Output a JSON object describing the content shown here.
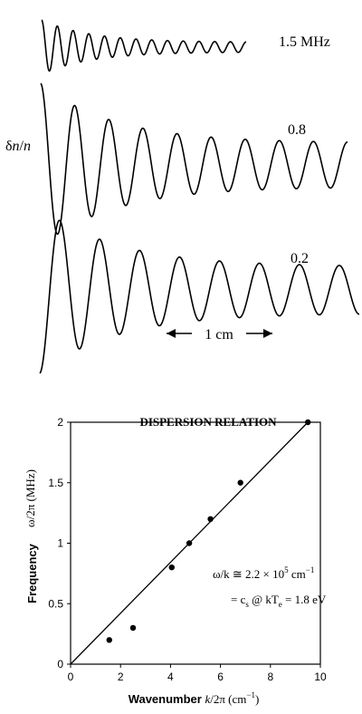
{
  "waves": {
    "ylabel_delta": "δ",
    "ylabel_n1": "n",
    "ylabel_slash": "/",
    "ylabel_n2": "n",
    "scale_bar_label": "1 cm",
    "traces": [
      {
        "label": "1.5 MHz",
        "frequency_mhz": 1.5,
        "cycles": 13,
        "amplitude": 1.0,
        "decay": 0.18
      },
      {
        "label": "0.8",
        "frequency_mhz": 0.8,
        "cycles": 9,
        "amplitude": 1.0,
        "decay": 0.27
      },
      {
        "label": "0.2",
        "frequency_mhz": 0.2,
        "cycles": 8,
        "amplitude": 1.0,
        "decay": 0.28
      }
    ]
  },
  "chart_data": {
    "type": "scatter",
    "title": "DISPERSION RELATION",
    "xlabel_prefix": "Wavenumber",
    "xlabel_var": "k",
    "xlabel_suffix": "/2π (cm",
    "xlabel_exp": "−1",
    "xlabel_close": ")",
    "ylabel_prefix": "Frequency",
    "ylabel_formula": "ω/2π (MHz)",
    "xlim": [
      0,
      10
    ],
    "ylim": [
      0,
      2
    ],
    "xticks": [
      0,
      2,
      4,
      6,
      8,
      10
    ],
    "yticks": [
      0,
      0.5,
      1,
      1.5,
      2
    ],
    "xtick_labels": [
      "0",
      "2",
      "4",
      "6",
      "8",
      "10"
    ],
    "ytick_labels": [
      "0",
      "0.5",
      "1",
      "1.5",
      "2"
    ],
    "points": [
      {
        "x": 1.55,
        "y": 0.2
      },
      {
        "x": 2.5,
        "y": 0.3
      },
      {
        "x": 4.05,
        "y": 0.8
      },
      {
        "x": 4.75,
        "y": 1.0
      },
      {
        "x": 5.6,
        "y": 1.2
      },
      {
        "x": 6.8,
        "y": 1.5
      },
      {
        "x": 9.5,
        "y": 2.0
      }
    ],
    "fit_line": {
      "x": [
        0,
        9.5
      ],
      "y": [
        0,
        2.0
      ]
    },
    "annotation_line1": {
      "pre": "ω/k ≅ 2.2 × 10",
      "sup": "5",
      "post": " cm",
      "sup2": "−1"
    },
    "annotation_line2": {
      "pre": "= c",
      "sub": "s",
      "mid": " @ kT",
      "sub2": "e",
      "post": " = 1.8 eV"
    }
  }
}
